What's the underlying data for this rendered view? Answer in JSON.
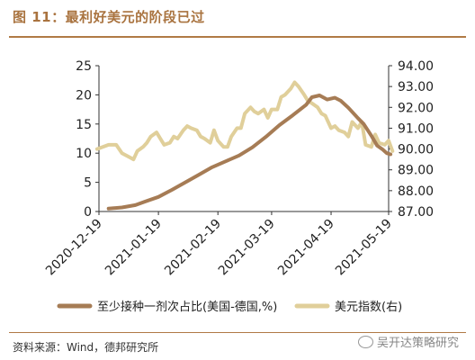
{
  "header": {
    "title": "图 11：最利好美元的阶段已过"
  },
  "footer": {
    "source": "资料来源：Wind，德邦研究所",
    "watermark": "吴开达策略研究"
  },
  "colors": {
    "accent": "#b07a45",
    "series1": "#a67c55",
    "series2": "#e0cf9a"
  },
  "chart_data": {
    "type": "line",
    "title": "",
    "x_ticks": [
      "2020-12-19",
      "2021-01-19",
      "2021-02-19",
      "2021-03-19",
      "2021-04-19",
      "2021-05-19"
    ],
    "y_left": {
      "ticks": [
        "0",
        "5",
        "10",
        "15",
        "20",
        "25"
      ],
      "range": [
        0,
        25
      ]
    },
    "y_right": {
      "ticks": [
        "87.00",
        "88.00",
        "89.00",
        "90.00",
        "91.00",
        "92.00",
        "93.00",
        "94.00"
      ],
      "range": [
        87,
        94
      ]
    },
    "legend_position": "bottom",
    "series": [
      {
        "name": "至少接种一剂次占比(美国-德国,%)",
        "axis": "left",
        "points": [
          [
            "2020-12-24",
            0.5
          ],
          [
            "2020-12-31",
            0.7
          ],
          [
            "2021-01-07",
            1.1
          ],
          [
            "2021-01-12",
            1.7
          ],
          [
            "2021-01-19",
            2.5
          ],
          [
            "2021-01-26",
            3.7
          ],
          [
            "2021-02-02",
            5.0
          ],
          [
            "2021-02-09",
            6.3
          ],
          [
            "2021-02-16",
            7.6
          ],
          [
            "2021-02-23",
            8.6
          ],
          [
            "2021-03-02",
            9.6
          ],
          [
            "2021-03-09",
            11.0
          ],
          [
            "2021-03-16",
            12.8
          ],
          [
            "2021-03-23",
            14.8
          ],
          [
            "2021-03-30",
            16.5
          ],
          [
            "2021-04-06",
            18.3
          ],
          [
            "2021-04-09",
            19.6
          ],
          [
            "2021-04-13",
            19.9
          ],
          [
            "2021-04-17",
            19.2
          ],
          [
            "2021-04-21",
            19.5
          ],
          [
            "2021-04-24",
            19.0
          ],
          [
            "2021-04-28",
            17.8
          ],
          [
            "2021-05-03",
            16.0
          ],
          [
            "2021-05-06",
            15.0
          ],
          [
            "2021-05-10",
            13.0
          ],
          [
            "2021-05-13",
            11.3
          ],
          [
            "2021-05-16",
            10.6
          ],
          [
            "2021-05-18",
            10.0
          ],
          [
            "2021-05-20",
            9.8
          ]
        ]
      },
      {
        "name": "美元指数(右)",
        "axis": "right",
        "points": [
          [
            "2020-12-18",
            90.0
          ],
          [
            "2020-12-21",
            90.1
          ],
          [
            "2020-12-24",
            90.2
          ],
          [
            "2020-12-28",
            90.2
          ],
          [
            "2020-12-31",
            89.8
          ],
          [
            "2021-01-04",
            89.6
          ],
          [
            "2021-01-06",
            89.5
          ],
          [
            "2021-01-08",
            89.9
          ],
          [
            "2021-01-11",
            90.1
          ],
          [
            "2021-01-13",
            90.3
          ],
          [
            "2021-01-15",
            90.6
          ],
          [
            "2021-01-18",
            90.8
          ],
          [
            "2021-01-20",
            90.5
          ],
          [
            "2021-01-22",
            90.2
          ],
          [
            "2021-01-25",
            90.3
          ],
          [
            "2021-01-27",
            90.6
          ],
          [
            "2021-01-29",
            90.5
          ],
          [
            "2021-02-01",
            90.9
          ],
          [
            "2021-02-03",
            91.1
          ],
          [
            "2021-02-05",
            91.0
          ],
          [
            "2021-02-08",
            90.9
          ],
          [
            "2021-02-10",
            90.6
          ],
          [
            "2021-02-12",
            90.5
          ],
          [
            "2021-02-15",
            90.3
          ],
          [
            "2021-02-17",
            90.9
          ],
          [
            "2021-02-19",
            90.4
          ],
          [
            "2021-02-22",
            90.1
          ],
          [
            "2021-02-24",
            90.1
          ],
          [
            "2021-02-26",
            90.6
          ],
          [
            "2021-03-01",
            91.0
          ],
          [
            "2021-03-03",
            91.0
          ],
          [
            "2021-03-05",
            91.7
          ],
          [
            "2021-03-08",
            92.0
          ],
          [
            "2021-03-10",
            91.8
          ],
          [
            "2021-03-12",
            91.7
          ],
          [
            "2021-03-15",
            91.9
          ],
          [
            "2021-03-17",
            91.5
          ],
          [
            "2021-03-19",
            91.9
          ],
          [
            "2021-03-22",
            91.9
          ],
          [
            "2021-03-24",
            92.5
          ],
          [
            "2021-03-26",
            92.6
          ],
          [
            "2021-03-29",
            92.9
          ],
          [
            "2021-03-31",
            93.2
          ],
          [
            "2021-04-02",
            93.0
          ],
          [
            "2021-04-05",
            92.6
          ],
          [
            "2021-04-07",
            92.3
          ],
          [
            "2021-04-09",
            92.2
          ],
          [
            "2021-04-12",
            92.0
          ],
          [
            "2021-04-14",
            91.7
          ],
          [
            "2021-04-16",
            91.6
          ],
          [
            "2021-04-19",
            91.0
          ],
          [
            "2021-04-21",
            91.1
          ],
          [
            "2021-04-23",
            90.9
          ],
          [
            "2021-04-26",
            90.8
          ],
          [
            "2021-04-28",
            90.6
          ],
          [
            "2021-04-30",
            91.3
          ],
          [
            "2021-05-03",
            91.0
          ],
          [
            "2021-05-05",
            91.3
          ],
          [
            "2021-05-07",
            90.2
          ],
          [
            "2021-05-10",
            90.1
          ],
          [
            "2021-05-12",
            90.7
          ],
          [
            "2021-05-14",
            90.3
          ],
          [
            "2021-05-17",
            90.2
          ],
          [
            "2021-05-19",
            90.4
          ],
          [
            "2021-05-21",
            89.9
          ]
        ]
      }
    ]
  }
}
